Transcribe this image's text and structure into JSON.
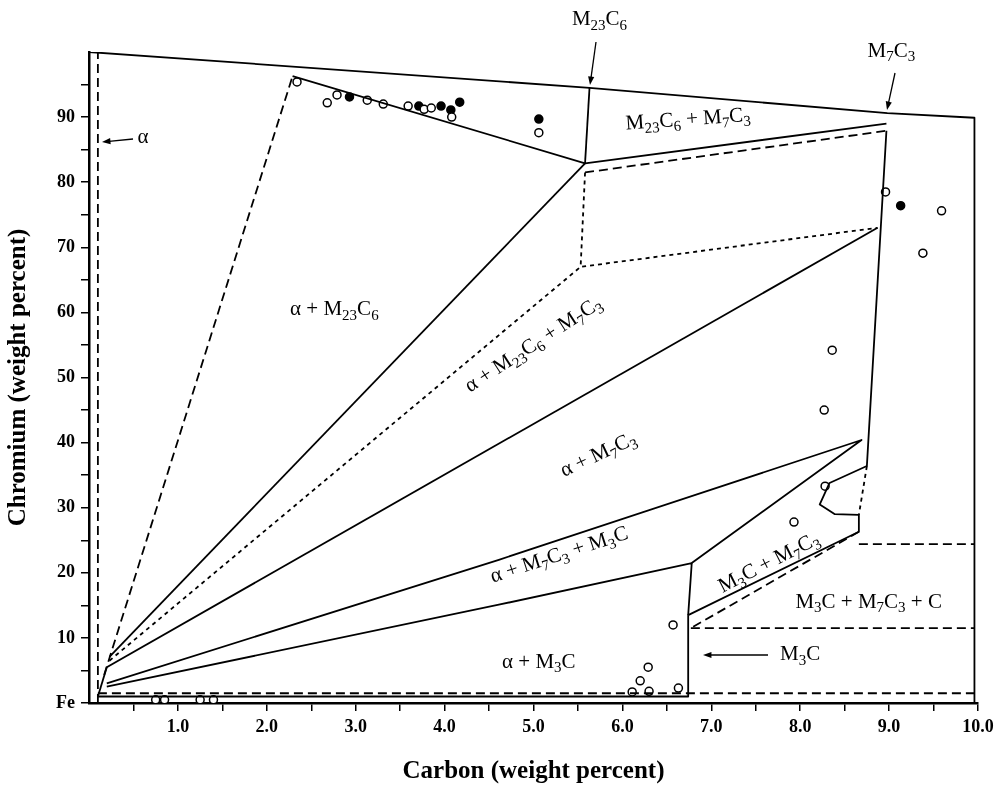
{
  "chart_data": {
    "type": "line",
    "xlabel": "Carbon (weight percent)",
    "ylabel": "Chromium (weight percent)",
    "xlim": [
      0,
      10
    ],
    "ylim": [
      0,
      100
    ],
    "xticks": [
      {
        "value": 0.5,
        "label": null
      },
      {
        "value": 1,
        "label": "1.0"
      },
      {
        "value": 1.5,
        "label": null
      },
      {
        "value": 2,
        "label": "2.0"
      },
      {
        "value": 2.5,
        "label": null
      },
      {
        "value": 3,
        "label": "3.0"
      },
      {
        "value": 3.5,
        "label": null
      },
      {
        "value": 4,
        "label": "4.0"
      },
      {
        "value": 4.5,
        "label": null
      },
      {
        "value": 5,
        "label": "5.0"
      },
      {
        "value": 5.5,
        "label": null
      },
      {
        "value": 6,
        "label": "6.0"
      },
      {
        "value": 6.5,
        "label": null
      },
      {
        "value": 7,
        "label": "7.0"
      },
      {
        "value": 7.5,
        "label": null
      },
      {
        "value": 8,
        "label": "8.0"
      },
      {
        "value": 8.5,
        "label": null
      },
      {
        "value": 9,
        "label": "9.0"
      },
      {
        "value": 9.5,
        "label": null
      },
      {
        "value": 10,
        "label": "10.0"
      }
    ],
    "yticks": [
      {
        "value": 0,
        "label": "Fe"
      },
      {
        "value": 5,
        "label": null
      },
      10,
      {
        "value": 15,
        "label": null
      },
      20,
      {
        "value": 25,
        "label": null
      },
      30,
      {
        "value": 35,
        "label": null
      },
      40,
      {
        "value": 45,
        "label": null
      },
      50,
      {
        "value": 55,
        "label": null
      },
      60,
      {
        "value": 65,
        "label": null
      },
      70,
      {
        "value": 75,
        "label": null
      },
      80,
      {
        "value": 85,
        "label": null
      },
      90,
      {
        "value": 95,
        "label": null
      }
    ],
    "series": [
      {
        "color": "#000000",
        "line_style": "solid",
        "x": [
          0,
          5.63,
          8.98,
          9.96,
          9.96
        ],
        "values": [
          100,
          94.5,
          90.6,
          89.9,
          0
        ]
      },
      {
        "color": "#000000",
        "line_style": "solid",
        "x": [
          2.29,
          5.58,
          8.97
        ],
        "values": [
          96.3,
          82.9,
          89.0
        ]
      },
      {
        "color": "#000000",
        "line_style": "dashed",
        "x": [
          0.17,
          2.29
        ],
        "values": [
          4.3,
          96.3
        ]
      },
      {
        "color": "#000000",
        "line_style": "solid",
        "x": [
          5.63,
          5.58
        ],
        "values": [
          94.5,
          82.9
        ]
      },
      {
        "color": "#000000",
        "line_style": "dashed",
        "x": [
          5.58,
          8.97
        ],
        "values": [
          81.5,
          87.9
        ]
      },
      {
        "color": "#000000",
        "line_style": "dotted",
        "x": [
          5.58,
          5.53,
          8.87
        ],
        "values": [
          81.5,
          67.0,
          73.0
        ]
      },
      {
        "color": "#000000",
        "line_style": "solid",
        "x": [
          8.97,
          8.75,
          8.33,
          8.22,
          8.39,
          8.66,
          8.66,
          6.74,
          6.74,
          0.1
        ],
        "values": [
          87.9,
          36.4,
          33.8,
          30.5,
          29.0,
          28.9,
          26.3,
          13.5,
          1.0,
          1.0
        ]
      },
      {
        "color": "#000000",
        "line_style": "dotted",
        "x": [
          8.75,
          8.66
        ],
        "values": [
          36.4,
          28.9
        ]
      },
      {
        "color": "#000000",
        "line_style": "solid",
        "x": [
          0.23,
          5.58
        ],
        "values": [
          7.1,
          82.9
        ]
      },
      {
        "color": "#000000",
        "line_style": "dotted",
        "x": [
          0.23,
          5.53
        ],
        "values": [
          6.5,
          67.0
        ]
      },
      {
        "color": "#000000",
        "line_style": "solid",
        "x": [
          0.2,
          8.87
        ],
        "values": [
          5.5,
          73.0
        ]
      },
      {
        "color": "#000000",
        "line_style": "solid",
        "x": [
          0.2,
          4.61,
          8.69,
          6.78
        ],
        "values": [
          3.0,
          22.0,
          40.4,
          21.5
        ]
      },
      {
        "color": "#000000",
        "line_style": "solid",
        "x": [
          0.2,
          4.61,
          6.78,
          6.74
        ],
        "values": [
          2.5,
          15.1,
          21.5,
          13.5
        ]
      },
      {
        "color": "#000000",
        "line_style": "dashed",
        "x": [
          8.66,
          6.77
        ],
        "values": [
          26.3,
          11.5
        ]
      },
      {
        "color": "#000000",
        "line_style": "dashed",
        "x": [
          8.66,
          9.96
        ],
        "values": [
          24.4,
          24.4
        ]
      },
      {
        "color": "#000000",
        "line_style": "dashed",
        "x": [
          6.77,
          9.96
        ],
        "values": [
          11.5,
          11.5
        ]
      },
      {
        "color": "#000000",
        "line_style": "dashed",
        "x": [
          0.1,
          9.96
        ],
        "values": [
          1.5,
          1.5
        ]
      },
      {
        "color": "#000000",
        "line_style": "dashed",
        "x": [
          0.1,
          0.1
        ],
        "values": [
          0,
          100
        ]
      },
      {
        "color": "#000000",
        "line_style": "solid",
        "x": [
          0.1,
          0.2
        ],
        "values": [
          1.0,
          5.5
        ]
      },
      {
        "type": "scatter",
        "marker": "circle",
        "color": "#000000",
        "x": [
          2.34,
          2.68,
          2.79,
          3.13,
          3.31,
          3.59,
          3.77,
          3.85,
          4.08,
          5.06,
          8.96,
          9.59,
          9.38,
          8.36,
          8.27,
          8.28,
          7.93,
          6.57,
          6.29,
          6.2,
          6.11,
          6.3,
          6.63,
          0.75,
          0.85,
          1.25,
          1.4
        ],
        "values": [
          95.4,
          92.2,
          93.4,
          92.6,
          92.0,
          91.7,
          91.2,
          91.4,
          90.0,
          87.6,
          78.5,
          75.6,
          69.1,
          54.2,
          45.0,
          33.3,
          27.8,
          12.0,
          5.5,
          3.4,
          1.7,
          1.8,
          2.3,
          0.5,
          0.5,
          0.5,
          0.5
        ]
      },
      {
        "type": "scatter",
        "marker": "circle",
        "color": "#000000",
        "x": [
          2.93,
          3.71,
          3.96,
          4.07,
          4.17,
          5.06,
          9.13
        ],
        "values": [
          93.1,
          91.7,
          91.7,
          91.1,
          92.3,
          89.7,
          76.4
        ]
      }
    ],
    "annotations": [
      {
        "text": "α",
        "x": 0.1,
        "y": 86
      },
      {
        "text": "M$_{23}$C$_{6}$",
        "x": 5.63,
        "y": 94.5
      },
      {
        "text": "M$_{7}$C$_{3}$",
        "x": 8.98,
        "y": 90.6
      },
      "M$_{3}$C",
      "α + M$_{23}$C$_{6}$",
      "M$_{23}$C$_{6}$ + M$_{7}$C$_{3}$",
      "α + M$_{23}$C$_{6}$ + M$_{7}$C$_{3}$",
      "α + M$_{7}$C$_{3}$",
      "α + M$_{7}$C$_{3}$ + M$_{3}$C",
      "α + M$_{3}$C",
      "M$_{3}$C + M$_{7}$C$_{3}$",
      "M$_{3}$C + M$_{7}$C$_{3}$ + C"
    ]
  }
}
